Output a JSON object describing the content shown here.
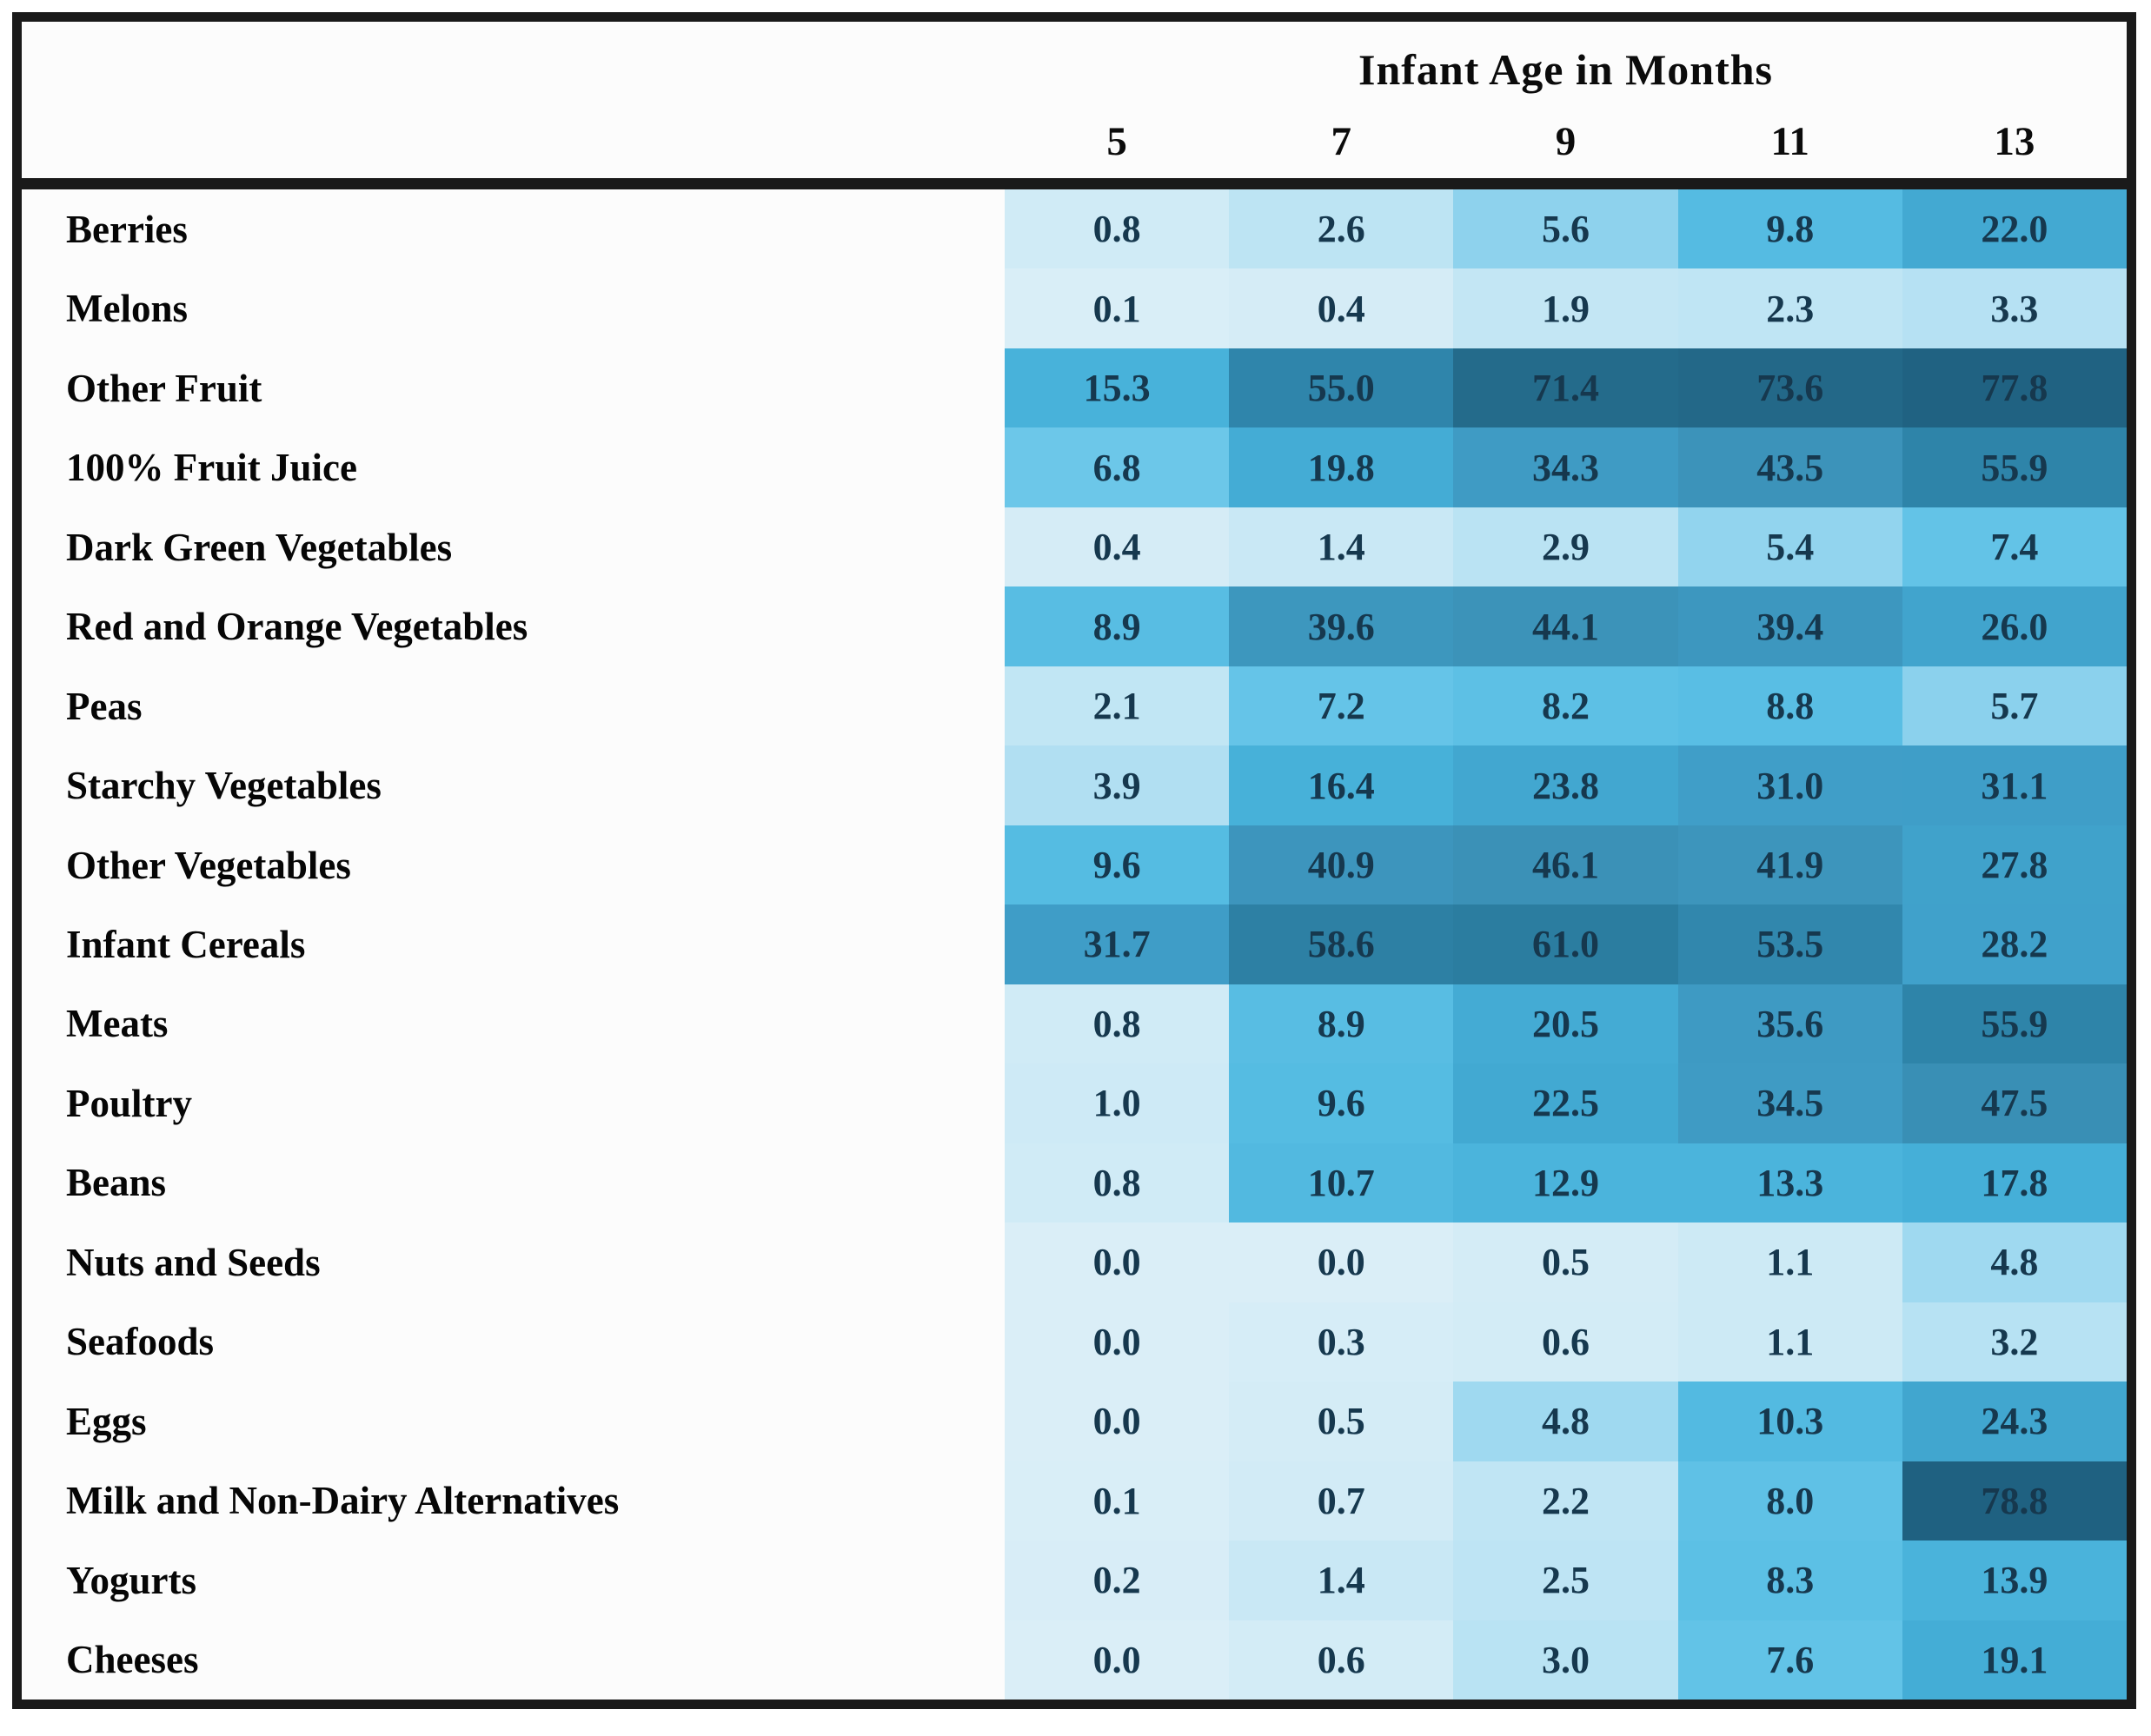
{
  "table": {
    "header_title": "Infant Age in Months",
    "columns": [
      "5",
      "7",
      "9",
      "11",
      "13"
    ],
    "rows": [
      {
        "label": "Berries",
        "values": [
          "0.8",
          "2.6",
          "5.6",
          "9.8",
          "22.0"
        ]
      },
      {
        "label": "Melons",
        "values": [
          "0.1",
          "0.4",
          "1.9",
          "2.3",
          "3.3"
        ]
      },
      {
        "label": "Other Fruit",
        "values": [
          "15.3",
          "55.0",
          "71.4",
          "73.6",
          "77.8"
        ]
      },
      {
        "label": "100% Fruit Juice",
        "values": [
          "6.8",
          "19.8",
          "34.3",
          "43.5",
          "55.9"
        ]
      },
      {
        "label": "Dark Green Vegetables",
        "values": [
          "0.4",
          "1.4",
          "2.9",
          "5.4",
          "7.4"
        ]
      },
      {
        "label": "Red and Orange Vegetables",
        "values": [
          "8.9",
          "39.6",
          "44.1",
          "39.4",
          "26.0"
        ]
      },
      {
        "label": "Peas",
        "values": [
          "2.1",
          "7.2",
          "8.2",
          "8.8",
          "5.7"
        ]
      },
      {
        "label": "Starchy Vegetables",
        "values": [
          "3.9",
          "16.4",
          "23.8",
          "31.0",
          "31.1"
        ]
      },
      {
        "label": "Other Vegetables",
        "values": [
          "9.6",
          "40.9",
          "46.1",
          "41.9",
          "27.8"
        ]
      },
      {
        "label": "Infant Cereals",
        "values": [
          "31.7",
          "58.6",
          "61.0",
          "53.5",
          "28.2"
        ]
      },
      {
        "label": "Meats",
        "values": [
          "0.8",
          "8.9",
          "20.5",
          "35.6",
          "55.9"
        ]
      },
      {
        "label": "Poultry",
        "values": [
          "1.0",
          "9.6",
          "22.5",
          "34.5",
          "47.5"
        ]
      },
      {
        "label": "Beans",
        "values": [
          "0.8",
          "10.7",
          "12.9",
          "13.3",
          "17.8"
        ]
      },
      {
        "label": "Nuts and Seeds",
        "values": [
          "0.0",
          "0.0",
          "0.5",
          "1.1",
          "4.8"
        ]
      },
      {
        "label": "Seafoods",
        "values": [
          "0.0",
          "0.3",
          "0.6",
          "1.1",
          "3.2"
        ]
      },
      {
        "label": "Eggs",
        "values": [
          "0.0",
          "0.5",
          "4.8",
          "10.3",
          "24.3"
        ]
      },
      {
        "label": "Milk and Non-Dairy Alternatives",
        "values": [
          "0.1",
          "0.7",
          "2.2",
          "8.0",
          "78.8"
        ]
      },
      {
        "label": "Yogurts",
        "values": [
          "0.2",
          "1.4",
          "2.5",
          "8.3",
          "13.9"
        ]
      },
      {
        "label": "Cheeses",
        "values": [
          "0.0",
          "0.6",
          "3.0",
          "7.6",
          "19.1"
        ]
      }
    ]
  },
  "chart_data": {
    "type": "heatmap",
    "title": "Infant Age in Months",
    "x": [
      5,
      7,
      9,
      11,
      13
    ],
    "categories": [
      "Berries",
      "Melons",
      "Other Fruit",
      "100% Fruit Juice",
      "Dark Green Vegetables",
      "Red and Orange Vegetables",
      "Peas",
      "Starchy Vegetables",
      "Other Vegetables",
      "Infant Cereals",
      "Meats",
      "Poultry",
      "Beans",
      "Nuts and Seeds",
      "Seafoods",
      "Eggs",
      "Milk and Non-Dairy Alternatives",
      "Yogurts",
      "Cheeses"
    ],
    "series": [
      {
        "name": "Berries",
        "values": [
          0.8,
          2.6,
          5.6,
          9.8,
          22.0
        ]
      },
      {
        "name": "Melons",
        "values": [
          0.1,
          0.4,
          1.9,
          2.3,
          3.3
        ]
      },
      {
        "name": "Other Fruit",
        "values": [
          15.3,
          55.0,
          71.4,
          73.6,
          77.8
        ]
      },
      {
        "name": "100% Fruit Juice",
        "values": [
          6.8,
          19.8,
          34.3,
          43.5,
          55.9
        ]
      },
      {
        "name": "Dark Green Vegetables",
        "values": [
          0.4,
          1.4,
          2.9,
          5.4,
          7.4
        ]
      },
      {
        "name": "Red and Orange Vegetables",
        "values": [
          8.9,
          39.6,
          44.1,
          39.4,
          26.0
        ]
      },
      {
        "name": "Peas",
        "values": [
          2.1,
          7.2,
          8.2,
          8.8,
          5.7
        ]
      },
      {
        "name": "Starchy Vegetables",
        "values": [
          3.9,
          16.4,
          23.8,
          31.0,
          31.1
        ]
      },
      {
        "name": "Other Vegetables",
        "values": [
          9.6,
          40.9,
          46.1,
          41.9,
          27.8
        ]
      },
      {
        "name": "Infant Cereals",
        "values": [
          31.7,
          58.6,
          61.0,
          53.5,
          28.2
        ]
      },
      {
        "name": "Meats",
        "values": [
          0.8,
          8.9,
          20.5,
          35.6,
          55.9
        ]
      },
      {
        "name": "Poultry",
        "values": [
          1.0,
          9.6,
          22.5,
          34.5,
          47.5
        ]
      },
      {
        "name": "Beans",
        "values": [
          0.8,
          10.7,
          12.9,
          13.3,
          17.8
        ]
      },
      {
        "name": "Nuts and Seeds",
        "values": [
          0.0,
          0.0,
          0.5,
          1.1,
          4.8
        ]
      },
      {
        "name": "Seafoods",
        "values": [
          0.0,
          0.3,
          0.6,
          1.1,
          3.2
        ]
      },
      {
        "name": "Eggs",
        "values": [
          0.0,
          0.5,
          4.8,
          10.3,
          24.3
        ]
      },
      {
        "name": "Milk and Non-Dairy Alternatives",
        "values": [
          0.1,
          0.7,
          2.2,
          8.0,
          78.8
        ]
      },
      {
        "name": "Yogurts",
        "values": [
          0.2,
          1.4,
          2.5,
          8.3,
          13.9
        ]
      },
      {
        "name": "Cheeses",
        "values": [
          0.0,
          0.6,
          3.0,
          7.6,
          19.1
        ]
      }
    ],
    "value_range": [
      0,
      80
    ],
    "grid": false,
    "legend_position": "none"
  },
  "style": {
    "border_color": "#1a1a1a",
    "cell_text_color": "#16384e",
    "label_text_color": "#060606",
    "color_ramp": [
      {
        "v": 0,
        "c": "#daeef7"
      },
      {
        "v": 2,
        "c": "#c2e6f4"
      },
      {
        "v": 4,
        "c": "#b0dff2"
      },
      {
        "v": 6,
        "c": "#85cfec"
      },
      {
        "v": 7,
        "c": "#66c5e8"
      },
      {
        "v": 9,
        "c": "#57bde3"
      },
      {
        "v": 13,
        "c": "#4bb4dc"
      },
      {
        "v": 18,
        "c": "#45afd8"
      },
      {
        "v": 25,
        "c": "#41a5ce"
      },
      {
        "v": 33,
        "c": "#3f9cc6"
      },
      {
        "v": 45,
        "c": "#3c92b8"
      },
      {
        "v": 55,
        "c": "#2f85ab"
      },
      {
        "v": 63,
        "c": "#2a7a9c"
      },
      {
        "v": 72,
        "c": "#246a8a"
      },
      {
        "v": 80,
        "c": "#1e5f7f"
      }
    ]
  }
}
